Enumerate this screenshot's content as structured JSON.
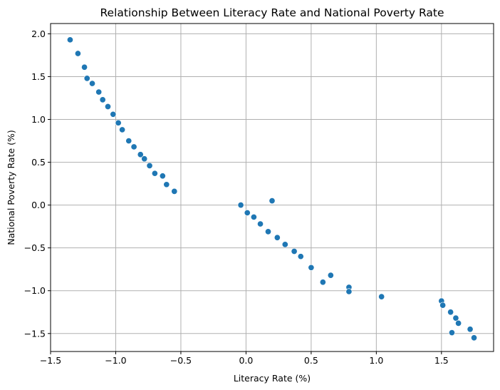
{
  "chart_data": {
    "type": "scatter",
    "title": "Relationship Between Literacy Rate and National Poverty Rate",
    "xlabel": "Literacy Rate (%)",
    "ylabel": "National Poverty Rate (%)",
    "xlim": [
      -1.5,
      1.9
    ],
    "ylim": [
      -1.71,
      2.12
    ],
    "xticks": [
      -1.5,
      -1.0,
      -0.5,
      0.0,
      0.5,
      1.0,
      1.5
    ],
    "xtick_labels": [
      "−1.5",
      "−1.0",
      "−0.5",
      "0.0",
      "0.5",
      "1.0",
      "1.5"
    ],
    "yticks": [
      -1.5,
      -1.0,
      -0.5,
      0.0,
      0.5,
      1.0,
      1.5,
      2.0
    ],
    "ytick_labels": [
      "−1.5",
      "−1.0",
      "−0.5",
      "0.0",
      "0.5",
      "1.0",
      "1.5",
      "2.0"
    ],
    "grid": true,
    "marker_color": "#1f77b4",
    "x": [
      -1.35,
      -1.29,
      -1.24,
      -1.22,
      -1.18,
      -1.13,
      -1.1,
      -1.06,
      -1.02,
      -0.98,
      -0.95,
      -0.9,
      -0.86,
      -0.81,
      -0.78,
      -0.74,
      -0.7,
      -0.64,
      -0.61,
      -0.55,
      -0.04,
      0.01,
      0.06,
      0.11,
      0.17,
      0.2,
      0.24,
      0.3,
      0.37,
      0.42,
      0.5,
      0.59,
      0.65,
      0.79,
      0.79,
      1.04,
      1.5,
      1.51,
      1.57,
      1.58,
      1.61,
      1.63,
      1.72,
      1.75
    ],
    "y": [
      1.93,
      1.77,
      1.61,
      1.48,
      1.42,
      1.32,
      1.23,
      1.15,
      1.06,
      0.96,
      0.88,
      0.75,
      0.68,
      0.59,
      0.54,
      0.46,
      0.37,
      0.34,
      0.24,
      0.16,
      0.0,
      -0.09,
      -0.14,
      -0.22,
      -0.31,
      0.05,
      -0.38,
      -0.46,
      -0.54,
      -0.6,
      -0.73,
      -0.9,
      -0.82,
      -0.96,
      -1.01,
      -1.07,
      -1.12,
      -1.17,
      -1.25,
      -1.49,
      -1.32,
      -1.38,
      -1.45,
      -1.55
    ]
  }
}
